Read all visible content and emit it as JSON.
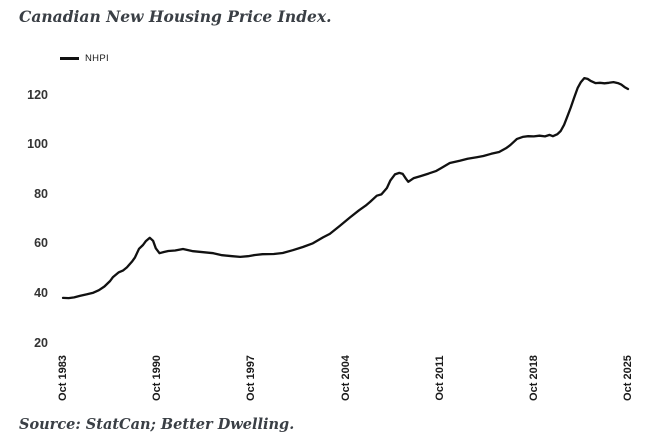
{
  "title": "Canadian New Housing Price Index.",
  "source": "Source: StatCan; Better Dwelling.",
  "legend": {
    "label": "NHPI"
  },
  "colors": {
    "line": "#111111",
    "title_text": "#3a3f45",
    "y_axis_text": "#333333",
    "x_axis_text": "#1a1a1a",
    "background": "#ffffff"
  },
  "chart_data": {
    "type": "line",
    "title": "Canadian New Housing Price Index.",
    "legend_entries": [
      "NHPI"
    ],
    "legend_position": "top-left",
    "grid": false,
    "axes_lines": false,
    "x_axis": {
      "tick_labels": [
        "Oct 1983",
        "Oct 1990",
        "Oct 1997",
        "Oct 2004",
        "Oct 2011",
        "Oct 2018",
        "Oct 2025"
      ],
      "tick_positions": [
        1983.75,
        1990.75,
        1997.75,
        2004.75,
        2011.75,
        2018.75,
        2025.75
      ],
      "label_rotation_deg": 90
    },
    "y_axis": {
      "ticks": [
        20,
        40,
        60,
        80,
        100,
        120
      ],
      "range": [
        20,
        130
      ]
    },
    "x_range": [
      1983.75,
      2025.75
    ],
    "series": [
      {
        "name": "NHPI",
        "color": "#111111",
        "points": [
          [
            1983.75,
            38.2
          ],
          [
            1984.17,
            38.1
          ],
          [
            1984.58,
            38.4
          ],
          [
            1985.0,
            39.0
          ],
          [
            1985.5,
            39.6
          ],
          [
            1986.0,
            40.3
          ],
          [
            1986.42,
            41.3
          ],
          [
            1986.83,
            42.8
          ],
          [
            1987.25,
            45.0
          ],
          [
            1987.45,
            46.5
          ],
          [
            1987.9,
            48.5
          ],
          [
            1988.2,
            49.2
          ],
          [
            1988.5,
            50.5
          ],
          [
            1988.9,
            53.0
          ],
          [
            1989.1,
            54.5
          ],
          [
            1989.4,
            58.0
          ],
          [
            1989.7,
            59.5
          ],
          [
            1989.9,
            61.0
          ],
          [
            1990.2,
            62.4
          ],
          [
            1990.45,
            61.2
          ],
          [
            1990.65,
            58.2
          ],
          [
            1990.92,
            56.2
          ],
          [
            1991.25,
            56.7
          ],
          [
            1991.58,
            57.1
          ],
          [
            1992.08,
            57.3
          ],
          [
            1992.67,
            57.9
          ],
          [
            1993.42,
            57.0
          ],
          [
            1994.17,
            56.6
          ],
          [
            1994.92,
            56.2
          ],
          [
            1995.58,
            55.4
          ],
          [
            1996.33,
            55.0
          ],
          [
            1996.92,
            54.7
          ],
          [
            1997.5,
            55.0
          ],
          [
            1997.92,
            55.4
          ],
          [
            1998.58,
            55.8
          ],
          [
            1999.42,
            55.9
          ],
          [
            2000.08,
            56.3
          ],
          [
            2000.83,
            57.4
          ],
          [
            2001.58,
            58.7
          ],
          [
            2002.33,
            60.2
          ],
          [
            2003.08,
            62.6
          ],
          [
            2003.58,
            64.0
          ],
          [
            2004.33,
            67.2
          ],
          [
            2005.08,
            70.6
          ],
          [
            2005.75,
            73.5
          ],
          [
            2006.25,
            75.4
          ],
          [
            2006.58,
            76.9
          ],
          [
            2007.08,
            79.4
          ],
          [
            2007.42,
            79.9
          ],
          [
            2007.83,
            82.5
          ],
          [
            2008.08,
            85.5
          ],
          [
            2008.42,
            88.0
          ],
          [
            2008.75,
            88.6
          ],
          [
            2009.0,
            88.2
          ],
          [
            2009.25,
            86.2
          ],
          [
            2009.42,
            85.0
          ],
          [
            2009.83,
            86.5
          ],
          [
            2010.33,
            87.3
          ],
          [
            2010.92,
            88.3
          ],
          [
            2011.5,
            89.4
          ],
          [
            2011.83,
            90.4
          ],
          [
            2012.5,
            92.6
          ],
          [
            2013.25,
            93.5
          ],
          [
            2013.83,
            94.3
          ],
          [
            2014.5,
            94.9
          ],
          [
            2015.0,
            95.4
          ],
          [
            2015.58,
            96.3
          ],
          [
            2016.17,
            97.0
          ],
          [
            2016.67,
            98.5
          ],
          [
            2017.0,
            99.8
          ],
          [
            2017.25,
            101.1
          ],
          [
            2017.5,
            102.3
          ],
          [
            2017.92,
            103.1
          ],
          [
            2018.33,
            103.4
          ],
          [
            2018.75,
            103.3
          ],
          [
            2019.17,
            103.6
          ],
          [
            2019.58,
            103.3
          ],
          [
            2019.92,
            103.9
          ],
          [
            2020.17,
            103.4
          ],
          [
            2020.5,
            104.2
          ],
          [
            2020.75,
            105.5
          ],
          [
            2021.0,
            108.0
          ],
          [
            2021.25,
            111.5
          ],
          [
            2021.5,
            115.0
          ],
          [
            2021.75,
            119.0
          ],
          [
            2022.0,
            122.8
          ],
          [
            2022.25,
            125.2
          ],
          [
            2022.5,
            126.8
          ],
          [
            2022.75,
            126.5
          ],
          [
            2023.0,
            125.6
          ],
          [
            2023.33,
            124.8
          ],
          [
            2023.67,
            124.9
          ],
          [
            2024.0,
            124.7
          ],
          [
            2024.33,
            124.9
          ],
          [
            2024.67,
            125.2
          ],
          [
            2025.0,
            124.8
          ],
          [
            2025.25,
            124.2
          ],
          [
            2025.5,
            123.2
          ],
          [
            2025.75,
            122.4
          ]
        ]
      }
    ]
  }
}
